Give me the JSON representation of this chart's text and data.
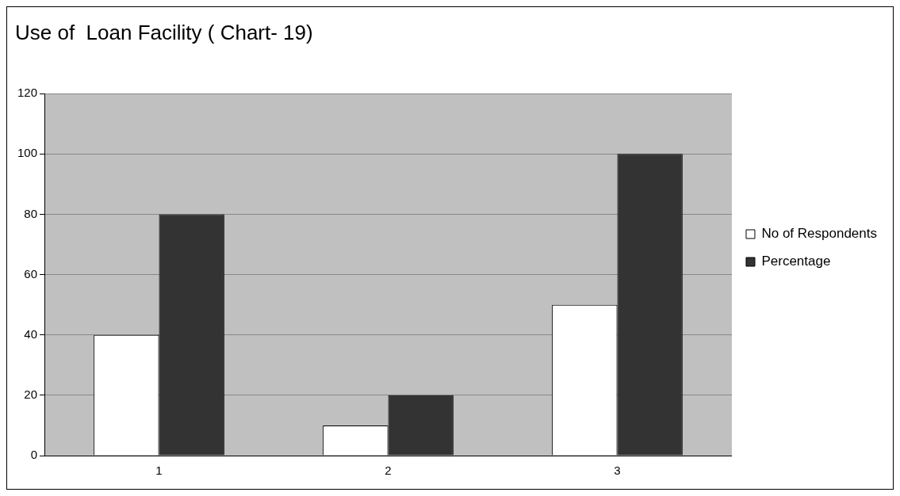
{
  "chart_data": {
    "type": "bar",
    "title": "Use of  Loan Facility ( Chart- 19)",
    "categories": [
      "1",
      "2",
      "3"
    ],
    "series": [
      {
        "name": "No of Respondents",
        "color": "#ffffff",
        "values": [
          40,
          10,
          50
        ]
      },
      {
        "name": "Percentage",
        "color": "#333333",
        "values": [
          80,
          20,
          100
        ]
      }
    ],
    "ylim": [
      0,
      120
    ],
    "yticks": [
      0,
      20,
      40,
      60,
      80,
      100,
      120
    ],
    "grid": "y",
    "legend": "right"
  }
}
